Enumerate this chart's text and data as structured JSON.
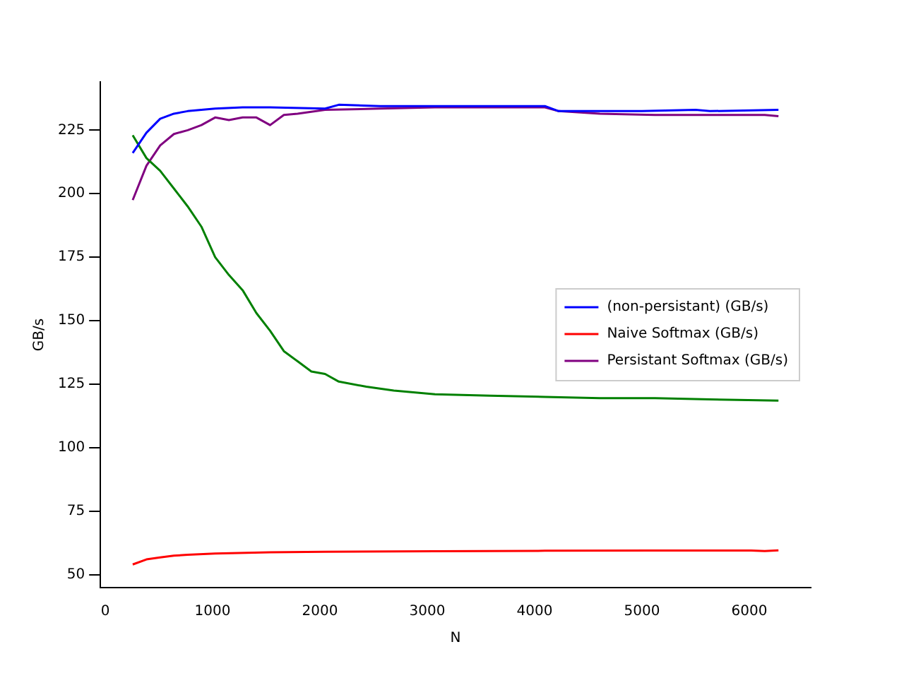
{
  "chart_data": {
    "type": "line",
    "xlabel": "N",
    "ylabel": "GB/s",
    "xlim": [
      -45,
      6573
    ],
    "ylim": [
      44.9,
      244
    ],
    "xticks": [
      0,
      1000,
      2000,
      3000,
      4000,
      5000,
      6000
    ],
    "yticks": [
      50,
      75,
      100,
      125,
      150,
      175,
      200,
      225
    ],
    "grid": false,
    "legend": "right",
    "marker": "none",
    "line_style": "solid",
    "series": [
      {
        "name": "(non-persistant) (GB/s)",
        "color": "#0000ff",
        "x": [
          256,
          384,
          512,
          640,
          768,
          1024,
          1280,
          1536,
          2048,
          2176,
          2560,
          3072,
          4096,
          4224,
          5000,
          5500,
          5632,
          6272
        ],
        "values": [
          216,
          224,
          229.5,
          231.5,
          232.5,
          233.5,
          234,
          234,
          233.5,
          235,
          234.5,
          234.5,
          234.5,
          232.5,
          232.5,
          233,
          232.5,
          233
        ]
      },
      {
        "color": "#008000",
        "x": [
          256,
          384,
          512,
          640,
          768,
          896,
          1024,
          1152,
          1280,
          1408,
          1536,
          1664,
          1792,
          1920,
          2048,
          2176,
          2432,
          2688,
          3072,
          3584,
          4096,
          4608,
          5120,
          5632,
          6272
        ],
        "values": [
          223,
          214,
          209,
          202,
          195,
          187,
          175,
          168,
          162,
          153,
          146,
          138,
          134,
          130,
          129,
          126,
          124,
          122.5,
          121,
          120.5,
          120,
          119.5,
          119.5,
          119,
          118.5
        ]
      },
      {
        "name": "Naive Softmax (GB/s)",
        "color": "#ff0000",
        "x": [
          256,
          384,
          512,
          640,
          768,
          1024,
          1536,
          2048,
          3072,
          4096,
          5120,
          6016,
          6144,
          6272
        ],
        "values": [
          54,
          56,
          56.8,
          57.5,
          57.8,
          58.3,
          58.8,
          59,
          59.2,
          59.4,
          59.5,
          59.5,
          59.3,
          59.6
        ]
      },
      {
        "name": "Persistant Softmax (GB/s)",
        "color": "#800080",
        "x": [
          256,
          384,
          512,
          640,
          768,
          896,
          1024,
          1152,
          1280,
          1408,
          1536,
          1664,
          1792,
          2048,
          2560,
          3072,
          4096,
          4224,
          4608,
          5120,
          5632,
          6144,
          6272
        ],
        "values": [
          197.5,
          211,
          219,
          223.5,
          225,
          227,
          230,
          229,
          230,
          230,
          227,
          231,
          231.5,
          233,
          233.5,
          234,
          234,
          232.5,
          231.5,
          231,
          231,
          231,
          230.5
        ]
      }
    ]
  }
}
